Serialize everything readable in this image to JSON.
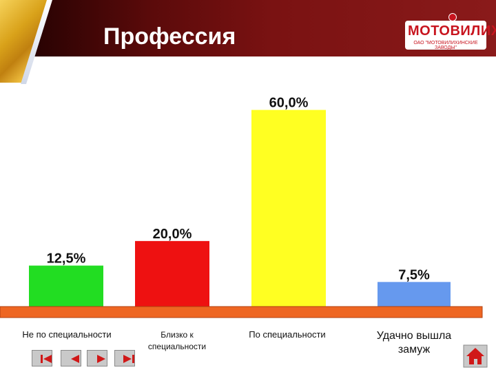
{
  "title": "Профессия",
  "logo": {
    "brand": "МОТОВИЛИХА",
    "company": "ОАО \"МОТОВИЛИХИНСКИЕ ЗАВОДЫ\""
  },
  "chart_data": {
    "type": "bar",
    "categories": [
      "Не по специальности",
      "Близко к специальности",
      "По специальности",
      "Удачно вышла замуж"
    ],
    "values": [
      12.5,
      20.0,
      60.0,
      7.5
    ],
    "data_labels": [
      "12,5%",
      "20,0%",
      "60,0%",
      "7,5%"
    ],
    "colors": [
      "#22dd22",
      "#ee1111",
      "#ffff22",
      "#6699ee"
    ],
    "ylim": [
      0,
      70
    ],
    "baseline_color": "#ee6622"
  },
  "nav": {
    "buttons": [
      "first-icon",
      "previous-icon",
      "next-icon",
      "last-icon"
    ],
    "home": "home-icon"
  }
}
